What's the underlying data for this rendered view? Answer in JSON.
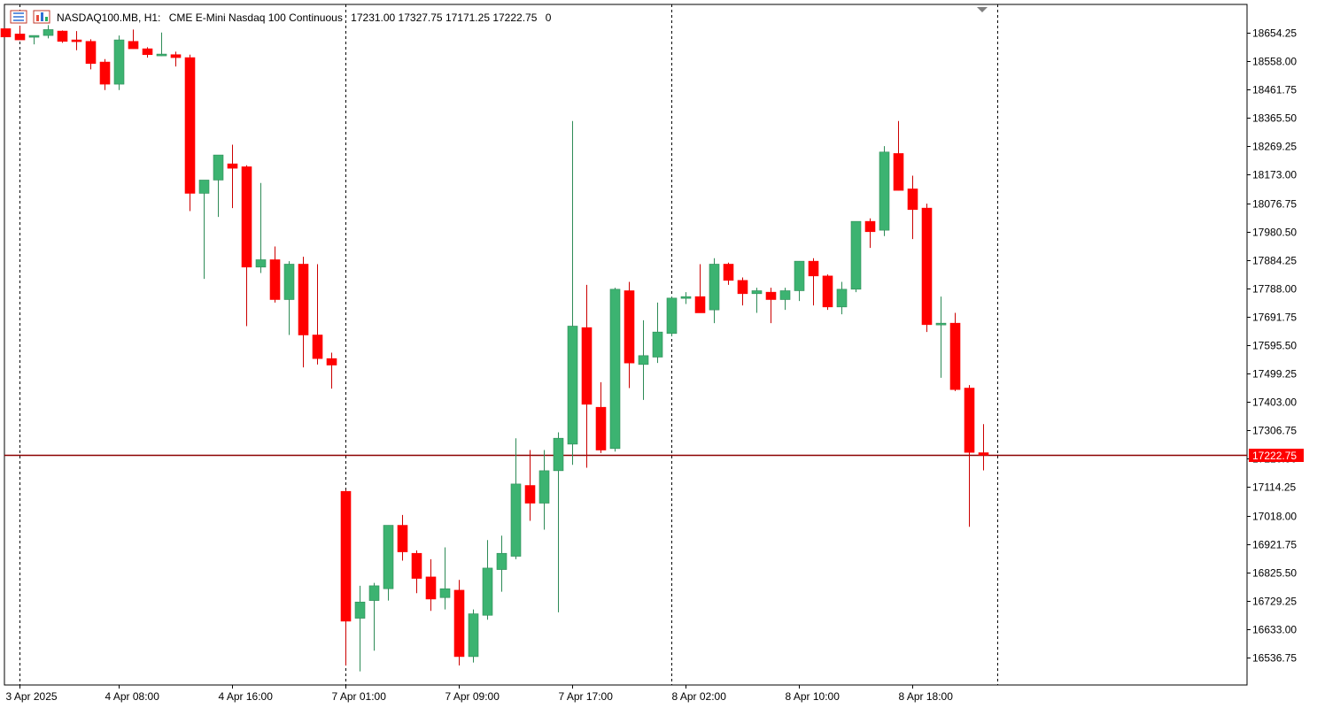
{
  "header": {
    "symbol": "NASDAQ100.MB, H1:",
    "description": "CME E-Mini Nasdaq 100 Continuous",
    "ohlc": "17231.00 17327.75 17171.25 17222.75",
    "volume": "0"
  },
  "icons": {
    "chart_icon": "candlestick-chart-icon",
    "indicator_icon": "indicator-window-icon",
    "scroll_marker": "shift-triangle-icon"
  },
  "current_price": {
    "value": 17222.75,
    "label": "17222.75",
    "line_color": "#8b0000",
    "label_bg": "#ff0000"
  },
  "colors": {
    "bull_body": "#3cb371",
    "bull_wick": "#2e8b57",
    "bear_body": "#ff0000",
    "bear_wick": "#cc0000"
  },
  "chart_data": {
    "type": "candlestick",
    "title": "NASDAQ100.MB, H1",
    "timeframe": "H1",
    "ylim": [
      16440,
      18700
    ],
    "yticks": [
      "18654.25",
      "18558.00",
      "18461.75",
      "18365.50",
      "18269.25",
      "18173.00",
      "18076.75",
      "17980.50",
      "17884.25",
      "17788.00",
      "17691.75",
      "17595.50",
      "17499.25",
      "17403.00",
      "17306.75",
      "17210.50",
      "17114.25",
      "17018.00",
      "16921.75",
      "16825.50",
      "16729.25",
      "16633.00",
      "16536.75"
    ],
    "xticks": [
      {
        "bar": 1,
        "label": "3 Apr 2025"
      },
      {
        "bar": 8,
        "label": "4 Apr 08:00"
      },
      {
        "bar": 16,
        "label": "4 Apr 16:00"
      },
      {
        "bar": 24,
        "label": "7 Apr 01:00"
      },
      {
        "bar": 32,
        "label": "7 Apr 09:00"
      },
      {
        "bar": 40,
        "label": "7 Apr 17:00"
      },
      {
        "bar": 48,
        "label": "8 Apr 02:00"
      },
      {
        "bar": 56,
        "label": "8 Apr 10:00"
      },
      {
        "bar": 64,
        "label": "8 Apr 18:00"
      }
    ],
    "day_separators": [
      1,
      24,
      47,
      70
    ],
    "grid": false,
    "candles": [
      [
        18668,
        18668,
        18640,
        18640
      ],
      [
        18650,
        18678,
        18630,
        18630
      ],
      [
        18640,
        18645,
        18615,
        18645
      ],
      [
        18645,
        18680,
        18635,
        18665
      ],
      [
        18660,
        18662,
        18620,
        18625
      ],
      [
        18630,
        18660,
        18595,
        18628
      ],
      [
        18625,
        18632,
        18530,
        18550
      ],
      [
        18555,
        18565,
        18460,
        18480
      ],
      [
        18480,
        18645,
        18460,
        18630
      ],
      [
        18625,
        18665,
        18600,
        18600
      ],
      [
        18600,
        18605,
        18570,
        18580
      ],
      [
        18580,
        18655,
        18575,
        18582
      ],
      [
        18580,
        18590,
        18540,
        18570
      ],
      [
        18570,
        18580,
        18050,
        18110
      ],
      [
        18110,
        18150,
        17820,
        18155
      ],
      [
        18155,
        18235,
        18030,
        18240
      ],
      [
        18210,
        18275,
        18060,
        18195
      ],
      [
        18200,
        18205,
        17660,
        17860
      ],
      [
        17860,
        18145,
        17840,
        17885
      ],
      [
        17885,
        17930,
        17740,
        17750
      ],
      [
        17750,
        17880,
        17630,
        17870
      ],
      [
        17870,
        17895,
        17520,
        17630
      ],
      [
        17630,
        17870,
        17530,
        17550
      ],
      [
        17550,
        17570,
        17448,
        17528
      ],
      [
        17100,
        17105,
        16510,
        16660
      ],
      [
        16670,
        16780,
        16490,
        16725
      ],
      [
        16730,
        16790,
        16560,
        16780
      ],
      [
        16770,
        16985,
        16730,
        16985
      ],
      [
        16985,
        17020,
        16865,
        16895
      ],
      [
        16890,
        16900,
        16755,
        16805
      ],
      [
        16810,
        16870,
        16695,
        16735
      ],
      [
        16740,
        16910,
        16700,
        16770
      ],
      [
        16765,
        16800,
        16510,
        16540
      ],
      [
        16540,
        16700,
        16520,
        16685
      ],
      [
        16680,
        16935,
        16665,
        16840
      ],
      [
        16835,
        16950,
        16760,
        16890
      ],
      [
        16880,
        17280,
        16870,
        17125
      ],
      [
        17120,
        17240,
        17000,
        17060
      ],
      [
        17060,
        17240,
        16970,
        17170
      ],
      [
        17170,
        17300,
        16690,
        17280
      ],
      [
        17260,
        18355,
        17190,
        17660
      ],
      [
        17655,
        17800,
        17180,
        17395
      ],
      [
        17385,
        17470,
        17230,
        17240
      ],
      [
        17245,
        17790,
        17235,
        17785
      ],
      [
        17780,
        17810,
        17450,
        17535
      ],
      [
        17530,
        17680,
        17410,
        17560
      ],
      [
        17555,
        17740,
        17535,
        17640
      ],
      [
        17635,
        17760,
        17625,
        17755
      ],
      [
        17760,
        17775,
        17735,
        17760
      ],
      [
        17760,
        17870,
        17705,
        17705
      ],
      [
        17715,
        17890,
        17670,
        17870
      ],
      [
        17870,
        17875,
        17800,
        17815
      ],
      [
        17815,
        17825,
        17730,
        17770
      ],
      [
        17770,
        17790,
        17705,
        17780
      ],
      [
        17775,
        17790,
        17670,
        17750
      ],
      [
        17750,
        17790,
        17715,
        17780
      ],
      [
        17780,
        17880,
        17745,
        17880
      ],
      [
        17880,
        17890,
        17730,
        17830
      ],
      [
        17830,
        17835,
        17715,
        17725
      ],
      [
        17725,
        17810,
        17700,
        17785
      ],
      [
        17785,
        18010,
        17775,
        18015
      ],
      [
        18015,
        18025,
        17925,
        17980
      ],
      [
        17985,
        18270,
        17965,
        18250
      ],
      [
        18245,
        18355,
        18120,
        18120
      ],
      [
        18125,
        18170,
        17955,
        18055
      ],
      [
        18060,
        18075,
        17640,
        17665
      ],
      [
        17665,
        17760,
        17485,
        17670
      ],
      [
        17670,
        17705,
        17440,
        17445
      ],
      [
        17450,
        17460,
        16980,
        17232
      ],
      [
        17231,
        17327.75,
        17171.25,
        17222.75
      ]
    ]
  }
}
